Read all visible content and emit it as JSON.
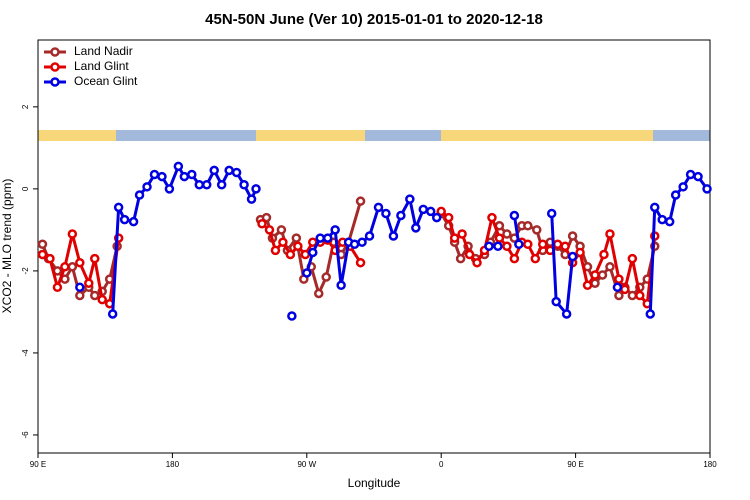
{
  "chart_data": {
    "type": "line",
    "title": "45N-50N June (Ver 10)   2015-01-01 to 2020-12-18",
    "x_label": "Longitude",
    "y_label": "XCO2 - MLO trend (ppm)",
    "xlim": [
      90,
      540
    ],
    "ylim": [
      -6.44,
      3.63
    ],
    "xticks": [
      {
        "value": 90,
        "label": "90 E"
      },
      180,
      {
        "value": 270,
        "label": "90 W"
      },
      {
        "value": 360,
        "label": "0"
      },
      {
        "value": 450,
        "label": "90 E"
      },
      {
        "value": 540,
        "label": "180"
      }
    ],
    "yticks": [
      -6,
      -4,
      -2,
      0,
      2
    ],
    "legend": "top-left",
    "series": [
      {
        "name": "Land Nadir",
        "color": "#a52a2a",
        "x": [
          93,
          97,
          103,
          108,
          113,
          118,
          124,
          128,
          133,
          138,
          143,
          null,
          239,
          243,
          247,
          253,
          257,
          263,
          268,
          273,
          278,
          283,
          288,
          293,
          298,
          306,
          null,
          360,
          365,
          369,
          373,
          378,
          383,
          389,
          393,
          399,
          404,
          409,
          414,
          418,
          424,
          428,
          433,
          438,
          443,
          448,
          453,
          458,
          463,
          468,
          473,
          479,
          483,
          488,
          493,
          498,
          503
        ],
        "values": [
          -1.35,
          -1.7,
          -2.0,
          -2.2,
          -1.9,
          -2.6,
          -2.4,
          -2.6,
          -2.5,
          -2.2,
          -1.4,
          null,
          -0.75,
          -0.7,
          -1.2,
          -1.0,
          -1.5,
          -1.2,
          -2.2,
          -1.9,
          -2.55,
          -2.15,
          -1.3,
          -1.6,
          -1.3,
          -0.3,
          null,
          -0.6,
          -0.9,
          -1.3,
          -1.7,
          -1.4,
          -1.7,
          -1.6,
          -1.3,
          -0.9,
          -1.1,
          -1.2,
          -0.9,
          -0.9,
          -1.0,
          -1.5,
          -1.3,
          -1.4,
          -1.6,
          -1.15,
          -1.4,
          -1.9,
          -2.3,
          -2.1,
          -1.9,
          -2.6,
          -2.4,
          -2.6,
          -2.4,
          -2.2,
          -1.4
        ]
      },
      {
        "name": "Land Glint",
        "color": "#e00000",
        "x": [
          93,
          98,
          103,
          108,
          113,
          118,
          124,
          128,
          133,
          138,
          144,
          null,
          240,
          245,
          249,
          254,
          259,
          264,
          269,
          274,
          279,
          284,
          289,
          294,
          299,
          306,
          null,
          360,
          365,
          369,
          374,
          379,
          384,
          389,
          394,
          399,
          404,
          409,
          414,
          418,
          423,
          428,
          433,
          438,
          443,
          448,
          453,
          458,
          463,
          469,
          473,
          479,
          483,
          488,
          493,
          498,
          503
        ],
        "values": [
          -1.6,
          -1.7,
          -2.4,
          -1.9,
          -1.1,
          -1.8,
          -2.3,
          -1.7,
          -2.7,
          -2.8,
          -1.2,
          null,
          -0.85,
          -1.0,
          -1.5,
          -1.3,
          -1.6,
          -1.4,
          -1.6,
          -1.3,
          -1.3,
          -1.25,
          -1.5,
          -1.3,
          -1.4,
          -1.8,
          null,
          -0.55,
          -0.7,
          -1.2,
          -1.1,
          -1.6,
          -1.8,
          -1.5,
          -0.7,
          -1.2,
          -1.4,
          -1.7,
          -1.3,
          -1.35,
          -1.7,
          -1.35,
          -1.5,
          -1.35,
          -1.4,
          -1.8,
          -1.55,
          -2.35,
          -2.1,
          -1.6,
          -1.1,
          -2.2,
          -2.45,
          -1.7,
          -2.6,
          -2.8,
          -1.15
        ]
      },
      {
        "name": "Ocean Glint",
        "color": "#0000e0",
        "x": [
          118,
          null,
          140,
          144,
          148,
          154,
          158,
          163,
          168,
          173,
          178,
          184,
          188,
          193,
          198,
          203,
          208,
          213,
          218,
          223,
          228,
          233,
          236,
          null,
          260,
          null,
          270,
          274,
          279,
          284,
          289,
          293,
          298,
          302,
          307,
          312,
          318,
          323,
          328,
          333,
          339,
          343,
          348,
          353,
          357,
          null,
          392,
          398,
          null,
          409,
          412,
          null,
          434,
          437,
          444,
          448,
          null,
          478,
          null,
          500,
          503,
          508,
          513,
          517,
          522,
          527,
          532,
          538
        ],
        "values": [
          -2.4,
          null,
          -3.05,
          -0.45,
          -0.75,
          -0.8,
          -0.15,
          0.05,
          0.35,
          0.3,
          0.0,
          0.55,
          0.3,
          0.35,
          0.1,
          0.1,
          0.45,
          0.1,
          0.45,
          0.4,
          0.1,
          -0.25,
          0.0,
          null,
          -3.1,
          null,
          -2.05,
          -1.55,
          -1.2,
          -1.2,
          -1.0,
          -2.35,
          -1.3,
          -1.35,
          -1.3,
          -1.15,
          -0.45,
          -0.6,
          -1.15,
          -0.65,
          -0.25,
          -0.95,
          -0.5,
          -0.55,
          -0.7,
          null,
          -1.4,
          -1.4,
          null,
          -0.65,
          -1.35,
          null,
          -0.6,
          -2.75,
          -3.05,
          -1.65,
          null,
          -2.4,
          null,
          -3.05,
          -0.45,
          -0.75,
          -0.8,
          -0.15,
          0.05,
          0.35,
          0.3,
          0.0
        ]
      }
    ]
  }
}
